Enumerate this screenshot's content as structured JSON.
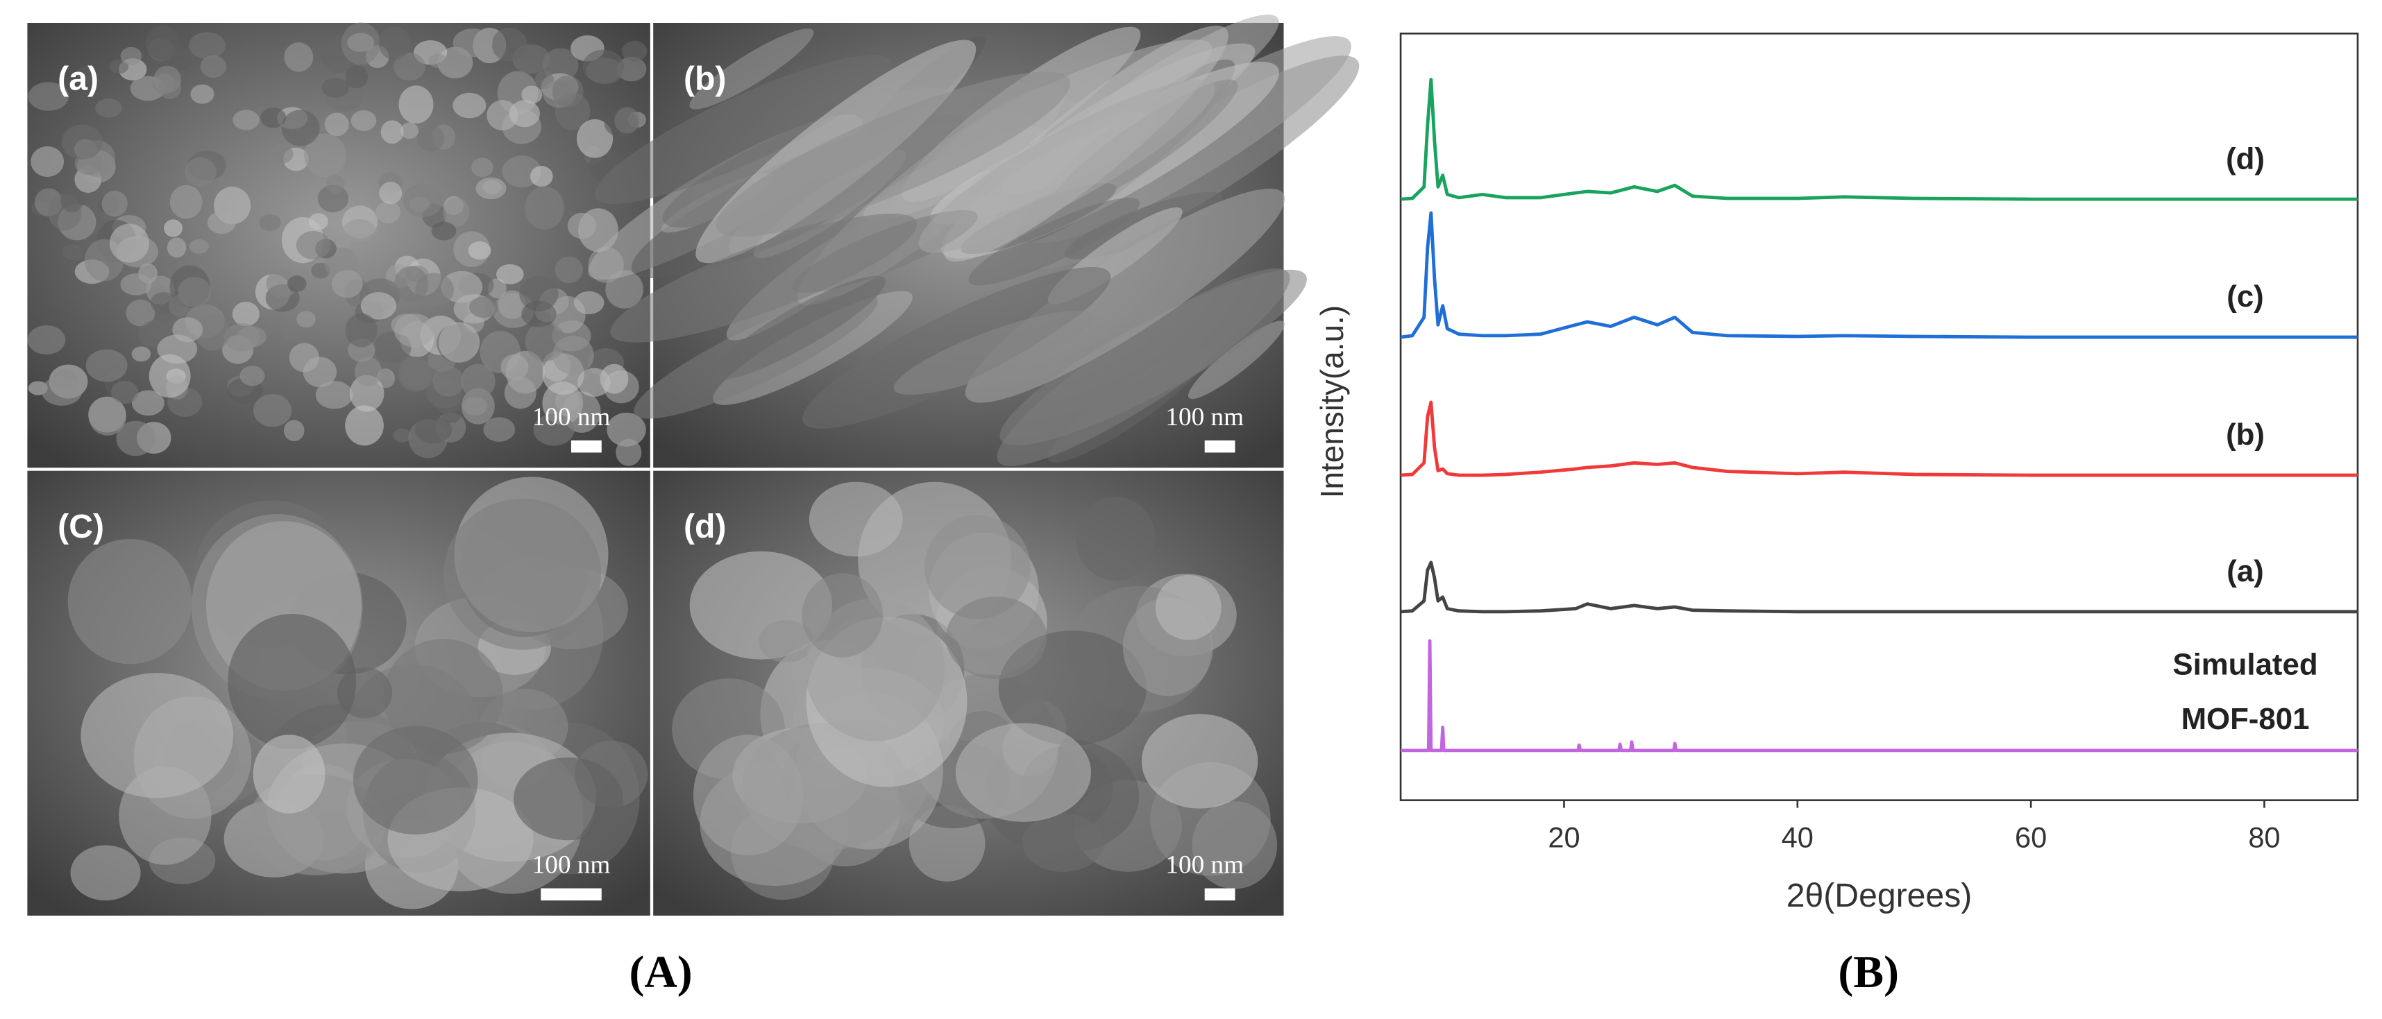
{
  "figure": {
    "panels": [
      {
        "label": "(a)",
        "scale": "100 nm"
      },
      {
        "label": "(b)",
        "scale": "100 nm"
      },
      {
        "label": "(C)",
        "scale": "100 nm"
      },
      {
        "label": "(d)",
        "scale": "100 nm"
      }
    ],
    "captions": [
      "(A)",
      "(B)"
    ]
  },
  "chart_data": {
    "type": "line",
    "xlabel": "2θ(Degrees)",
    "ylabel": "Intensity(a.u.)",
    "xlim": [
      6,
      88
    ],
    "xticks": [
      20,
      40,
      60,
      80
    ],
    "ylim": [
      0,
      100
    ],
    "series": [
      {
        "name": "(d)",
        "color": "#1aa35e",
        "x": [
          6,
          7,
          8,
          8.3,
          8.6,
          8.9,
          9.2,
          9.6,
          10,
          11,
          13,
          15,
          18,
          21,
          22,
          24,
          26,
          28,
          29.5,
          31,
          34,
          40,
          44,
          50,
          60,
          70,
          80,
          88
        ],
        "values": [
          78.4,
          78.5,
          80,
          88,
          94,
          86,
          80,
          81.5,
          79,
          78.6,
          79,
          78.6,
          78.6,
          79.2,
          79.4,
          79.2,
          80,
          79.4,
          80.2,
          78.8,
          78.5,
          78.5,
          78.7,
          78.5,
          78.4,
          78.4,
          78.4,
          78.4
        ]
      },
      {
        "name": "(c)",
        "color": "#1f6fd6",
        "x": [
          6,
          7,
          8,
          8.3,
          8.6,
          8.9,
          9.2,
          9.6,
          10,
          11,
          13,
          15,
          18,
          21,
          22,
          24,
          26,
          28,
          29.5,
          31,
          34,
          40,
          44,
          50,
          60,
          70,
          80,
          88
        ],
        "values": [
          60.4,
          60.6,
          63,
          72,
          76.6,
          68,
          62,
          64.5,
          61.5,
          60.8,
          60.6,
          60.6,
          60.8,
          62,
          62.4,
          61.8,
          63,
          62,
          63,
          61,
          60.6,
          60.5,
          60.6,
          60.5,
          60.4,
          60.4,
          60.4,
          60.4
        ]
      },
      {
        "name": "(b)",
        "color": "#f03a3a",
        "x": [
          6,
          7,
          8,
          8.3,
          8.6,
          8.9,
          9.2,
          9.6,
          10,
          11,
          13,
          15,
          18,
          21,
          22,
          24,
          26,
          28,
          29.5,
          31,
          34,
          40,
          44,
          50,
          60,
          70,
          80,
          88
        ],
        "values": [
          42.4,
          42.5,
          44,
          50,
          51.9,
          46,
          43,
          43.2,
          42.6,
          42.4,
          42.4,
          42.5,
          42.8,
          43.2,
          43.4,
          43.6,
          44,
          43.8,
          44,
          43.4,
          42.9,
          42.6,
          42.8,
          42.5,
          42.4,
          42.4,
          42.4,
          42.4
        ]
      },
      {
        "name": "(a)",
        "color": "#444444",
        "x": [
          6,
          7,
          8,
          8.3,
          8.6,
          8.9,
          9.2,
          9.6,
          10,
          11,
          13,
          15,
          18,
          21,
          22,
          24,
          26,
          28,
          29.5,
          31,
          34,
          40,
          44,
          50,
          60,
          70,
          80,
          88
        ],
        "values": [
          24.6,
          24.7,
          26,
          30,
          31,
          29,
          26,
          26.5,
          25,
          24.7,
          24.6,
          24.6,
          24.7,
          25,
          25.6,
          25,
          25.4,
          25,
          25.2,
          24.8,
          24.7,
          24.6,
          24.6,
          24.6,
          24.6,
          24.6,
          24.6,
          24.6
        ]
      },
      {
        "name": "Simulated MOF-801",
        "color": "#c266e0",
        "x": [
          6,
          8.4,
          8.5,
          8.6,
          9.5,
          9.6,
          9.7,
          21.2,
          21.3,
          21.4,
          24.7,
          24.8,
          24.9,
          25.7,
          25.8,
          25.9,
          29.4,
          29.5,
          29.6,
          88
        ],
        "values": [
          6.5,
          6.5,
          20.8,
          6.5,
          6.5,
          9.5,
          6.5,
          6.5,
          7.2,
          6.5,
          6.5,
          7.3,
          6.5,
          6.5,
          7.6,
          6.5,
          6.5,
          7.4,
          6.5,
          6.5
        ]
      }
    ]
  }
}
